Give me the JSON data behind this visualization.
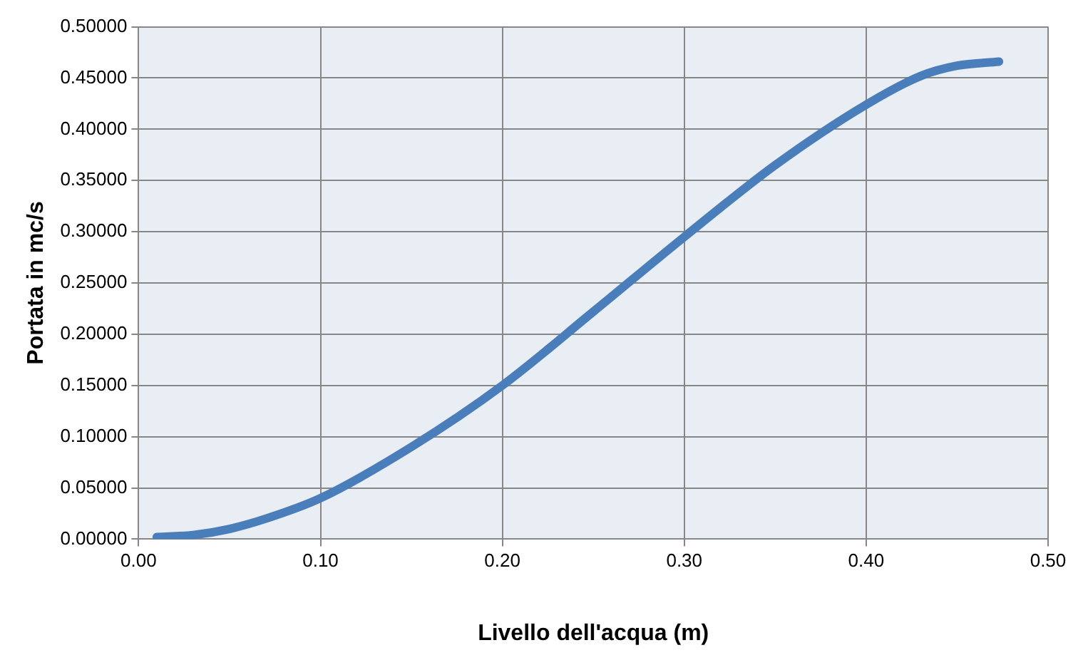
{
  "chart_data": {
    "type": "line",
    "xlabel": "Livello dell'acqua (m)",
    "ylabel": "Portata in mc/s",
    "x": [
      0.01,
      0.03,
      0.05,
      0.07,
      0.1,
      0.15,
      0.2,
      0.25,
      0.3,
      0.35,
      0.4,
      0.43,
      0.45,
      0.473
    ],
    "series": [
      {
        "color": "#4a7ebb",
        "values": [
          0.002,
          0.004,
          0.01,
          0.02,
          0.04,
          0.09,
          0.15,
          0.222,
          0.295,
          0.365,
          0.424,
          0.452,
          0.462,
          0.466
        ]
      }
    ],
    "xlim": [
      0,
      0.5
    ],
    "xticks": [
      {
        "value": 0,
        "label": "0.00"
      },
      {
        "value": 0.1,
        "label": "0.10"
      },
      {
        "value": 0.2,
        "label": "0.20"
      },
      {
        "value": 0.3,
        "label": "0.30"
      },
      {
        "value": 0.4,
        "label": "0.40"
      },
      {
        "value": 0.5,
        "label": "0.50"
      }
    ],
    "ylim": [
      0,
      0.5
    ],
    "yticks": [
      {
        "value": 0,
        "label": "0.00000"
      },
      {
        "value": 0.05,
        "label": "0.05000"
      },
      {
        "value": 0.1,
        "label": "0.10000"
      },
      {
        "value": 0.15,
        "label": "0.15000"
      },
      {
        "value": 0.2,
        "label": "0.20000"
      },
      {
        "value": 0.25,
        "label": "0.25000"
      },
      {
        "value": 0.3,
        "label": "0.30000"
      },
      {
        "value": 0.35,
        "label": "0.35000"
      },
      {
        "value": 0.4,
        "label": "0.40000"
      },
      {
        "value": 0.45,
        "label": "0.45000"
      },
      {
        "value": 0.5,
        "label": "0.50000"
      }
    ],
    "grid": true,
    "legend": false,
    "marker": "none",
    "line_style": "solid"
  }
}
